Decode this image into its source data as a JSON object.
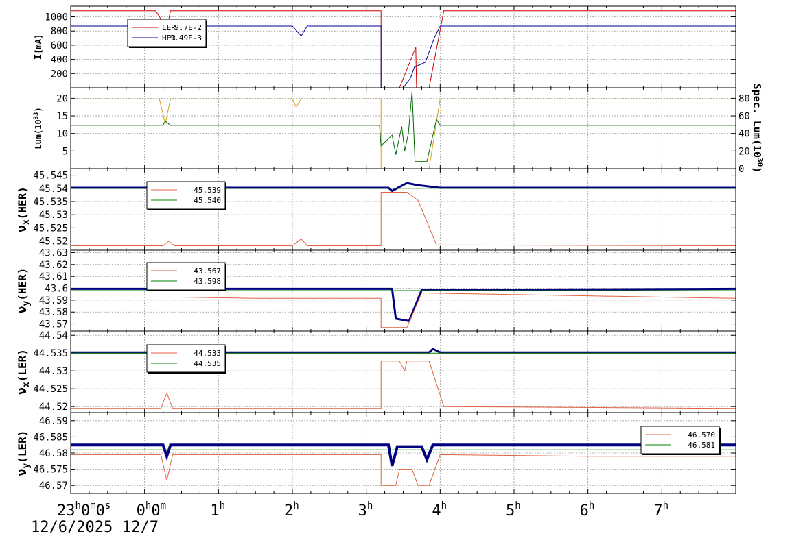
{
  "chart_data": {
    "type": "line",
    "x_axis": {
      "range_hours": [
        -1,
        8
      ],
      "ticks": [
        {
          "h": -1,
          "main": "23",
          "sup": "h",
          "rest": [
            [
              "0",
              "m"
            ],
            [
              "0",
              "s"
            ]
          ]
        },
        {
          "h": 0,
          "main": "0",
          "sup": "h",
          "rest": [
            [
              "0",
              "m"
            ]
          ]
        },
        {
          "h": 1,
          "main": "1",
          "sup": "h",
          "rest": []
        },
        {
          "h": 2,
          "main": "2",
          "sup": "h",
          "rest": []
        },
        {
          "h": 3,
          "main": "3",
          "sup": "h",
          "rest": []
        },
        {
          "h": 4,
          "main": "4",
          "sup": "h",
          "rest": []
        },
        {
          "h": 5,
          "main": "5",
          "sup": "h",
          "rest": []
        },
        {
          "h": 6,
          "main": "6",
          "sup": "h",
          "rest": []
        },
        {
          "h": 7,
          "main": "7",
          "sup": "h",
          "rest": []
        }
      ],
      "date_labels": [
        "12/6/2025",
        "12/7"
      ]
    },
    "panels": [
      {
        "id": "current",
        "ylabel_main": "I",
        "ylabel_unit": "[mA]",
        "ylabel_sub": "",
        "ylabel_super": "",
        "ylim": [
          0,
          1150
        ],
        "yticks": [
          200,
          400,
          600,
          800,
          1000
        ],
        "tick_labels": [
          "200",
          "400",
          "600",
          "800",
          "1000"
        ],
        "legend": [
          {
            "label": "LER",
            "value": "9.7E-2",
            "color": "#cc0000"
          },
          {
            "label": "HER",
            "value": "9.49E-3",
            "color": "#000099"
          }
        ],
        "series": [
          {
            "color": "#cc0000",
            "points": [
              [
                -1,
                1085
              ],
              [
                0.15,
                1085
              ],
              [
                0.25,
                920
              ],
              [
                0.3,
                820
              ],
              [
                0.35,
                1085
              ],
              [
                3.2,
                1085
              ],
              [
                3.2,
                0
              ],
              [
                3.45,
                0
              ],
              [
                3.67,
                570
              ],
              [
                3.68,
                0
              ],
              [
                3.85,
                0
              ],
              [
                4.05,
                1085
              ],
              [
                8,
                1085
              ],
              [
                8,
                0
              ]
            ]
          },
          {
            "color": "#000099",
            "points": [
              [
                -1,
                870
              ],
              [
                0.2,
                870
              ],
              [
                0.25,
                820
              ],
              [
                0.3,
                740
              ],
              [
                0.38,
                870
              ],
              [
                2.0,
                870
              ],
              [
                2.12,
                730
              ],
              [
                2.2,
                870
              ],
              [
                3.2,
                870
              ],
              [
                3.2,
                0
              ],
              [
                3.5,
                0
              ],
              [
                3.6,
                140
              ],
              [
                3.65,
                290
              ],
              [
                3.8,
                360
              ],
              [
                3.92,
                700
              ],
              [
                4.0,
                870
              ],
              [
                8,
                870
              ],
              [
                8,
                0
              ]
            ]
          }
        ]
      },
      {
        "id": "luminosity",
        "ylabel_main": "Lum",
        "ylabel_unit": "",
        "ylabel_sub": "",
        "ylabel_super": "33",
        "ylim": [
          0,
          23
        ],
        "yticks": [
          5,
          10,
          15,
          20
        ],
        "tick_labels": [
          "5",
          "10",
          "15",
          "20"
        ],
        "right_axis": {
          "label": "Spec. Lum(10",
          "super": "30",
          "close": ")",
          "ylim": [
            0,
            92
          ],
          "yticks": [
            0,
            20,
            40,
            60,
            80
          ],
          "tick_labels": [
            "0",
            "20",
            "40",
            "60",
            "80"
          ]
        },
        "legend": [],
        "series": [
          {
            "color": "#d4a017",
            "points": [
              [
                -1,
                19.8
              ],
              [
                0.2,
                19.8
              ],
              [
                0.28,
                12.8
              ],
              [
                0.35,
                19.8
              ],
              [
                2.0,
                19.8
              ],
              [
                2.05,
                17.5
              ],
              [
                2.12,
                19.8
              ],
              [
                3.2,
                19.8
              ],
              [
                3.2,
                0
              ],
              [
                3.85,
                0
              ],
              [
                4.0,
                19.8
              ],
              [
                8,
                19.8
              ]
            ]
          },
          {
            "color": "#006400",
            "points": [
              [
                -1,
                12.3
              ],
              [
                0.25,
                12.3
              ],
              [
                0.28,
                13.5
              ],
              [
                0.35,
                12.3
              ],
              [
                3.18,
                12.3
              ],
              [
                3.2,
                6.5
              ],
              [
                3.35,
                9.5
              ],
              [
                3.4,
                4
              ],
              [
                3.48,
                12
              ],
              [
                3.52,
                5
              ],
              [
                3.57,
                10
              ],
              [
                3.62,
                22
              ],
              [
                3.66,
                2
              ],
              [
                3.82,
                2
              ],
              [
                3.95,
                14
              ],
              [
                4.0,
                12.3
              ],
              [
                8,
                12.3
              ]
            ]
          }
        ]
      },
      {
        "id": "nux_her",
        "ylabel_main": "ν",
        "ylabel_unit": "(HER)",
        "ylabel_sub": "x",
        "ylabel_super": "",
        "ylim": [
          45.5165,
          45.5475
        ],
        "yticks": [
          45.52,
          45.525,
          45.53,
          45.535,
          45.54,
          45.545
        ],
        "tick_labels": [
          "45.52",
          "45.525",
          "45.53",
          "45.535",
          "45.54",
          "45.545"
        ],
        "legend": [
          {
            "label": "",
            "value": "45.539",
            "color": "#e06040"
          },
          {
            "label": "",
            "value": "45.540",
            "color": "#008000"
          }
        ],
        "series": [
          {
            "color": "#000080",
            "points": [
              [
                -1,
                45.5402
              ],
              [
                3.3,
                45.5402
              ],
              [
                3.35,
                45.539
              ],
              [
                3.55,
                45.542
              ],
              [
                3.7,
                45.5412
              ],
              [
                4.0,
                45.5402
              ],
              [
                8,
                45.5402
              ]
            ],
            "width": 3
          },
          {
            "color": "#008000",
            "points": [
              [
                -1,
                45.54
              ],
              [
                8,
                45.54
              ]
            ],
            "width": 1
          },
          {
            "color": "#e06040",
            "points": [
              [
                -1,
                45.5182
              ],
              [
                0.25,
                45.5182
              ],
              [
                0.33,
                45.52
              ],
              [
                0.4,
                45.5182
              ],
              [
                2.0,
                45.5182
              ],
              [
                2.12,
                45.5208
              ],
              [
                2.2,
                45.5182
              ],
              [
                3.2,
                45.5182
              ],
              [
                3.2,
                45.5385
              ],
              [
                3.55,
                45.5385
              ],
              [
                3.7,
                45.5355
              ],
              [
                3.95,
                45.5185
              ],
              [
                8,
                45.5182
              ],
              [
                8,
                45.54
              ]
            ],
            "width": 1
          }
        ]
      },
      {
        "id": "nuy_her",
        "ylabel_main": "ν",
        "ylabel_unit": "(HER)",
        "ylabel_sub": "y",
        "ylabel_super": "",
        "ylim": [
          43.564,
          43.632
        ],
        "yticks": [
          43.57,
          43.58,
          43.59,
          43.6,
          43.61,
          43.62,
          43.63
        ],
        "tick_labels": [
          "43.57",
          "43.58",
          "43.59",
          "43.6",
          "43.61",
          "43.62",
          "43.63"
        ],
        "legend": [
          {
            "label": "",
            "value": "43.567",
            "color": "#e06040"
          },
          {
            "label": "",
            "value": "43.598",
            "color": "#008000"
          }
        ],
        "series": [
          {
            "color": "#000080",
            "points": [
              [
                -1,
                43.5995
              ],
              [
                3.2,
                43.5995
              ],
              [
                3.35,
                43.5995
              ],
              [
                3.4,
                43.5745
              ],
              [
                3.58,
                43.5725
              ],
              [
                3.75,
                43.5985
              ],
              [
                8,
                43.5995
              ]
            ],
            "width": 3
          },
          {
            "color": "#008000",
            "points": [
              [
                -1,
                43.598
              ],
              [
                8,
                43.598
              ]
            ],
            "width": 1
          },
          {
            "color": "#e06040",
            "points": [
              [
                -1,
                43.5925
              ],
              [
                0.5,
                43.5925
              ],
              [
                1.5,
                43.5915
              ],
              [
                3.2,
                43.5915
              ],
              [
                3.2,
                43.567
              ],
              [
                3.55,
                43.567
              ],
              [
                3.75,
                43.596
              ],
              [
                8,
                43.5915
              ]
            ],
            "width": 1
          }
        ]
      },
      {
        "id": "nux_ler",
        "ylabel_main": "ν",
        "ylabel_unit": "(LER)",
        "ylabel_sub": "x",
        "ylabel_super": "",
        "ylim": [
          44.5183,
          44.5412
        ],
        "yticks": [
          44.52,
          44.525,
          44.53,
          44.535,
          44.54
        ],
        "tick_labels": [
          "44.52",
          "44.525",
          "44.53",
          "44.535",
          "44.54"
        ],
        "legend": [
          {
            "label": "",
            "value": "44.533",
            "color": "#e06040"
          },
          {
            "label": "",
            "value": "44.535",
            "color": "#008000"
          }
        ],
        "series": [
          {
            "color": "#000080",
            "points": [
              [
                -1,
                44.5352
              ],
              [
                3.85,
                44.5352
              ],
              [
                3.9,
                44.5362
              ],
              [
                4.0,
                44.5352
              ],
              [
                8,
                44.5352
              ]
            ],
            "width": 3
          },
          {
            "color": "#008000",
            "points": [
              [
                -1,
                44.535
              ],
              [
                8,
                44.535
              ]
            ],
            "width": 1
          },
          {
            "color": "#e06040",
            "points": [
              [
                -1,
                44.5195
              ],
              [
                0.22,
                44.5195
              ],
              [
                0.3,
                44.5238
              ],
              [
                0.38,
                44.5195
              ],
              [
                3.2,
                44.5195
              ],
              [
                3.2,
                44.5328
              ],
              [
                3.45,
                44.5328
              ],
              [
                3.52,
                44.53
              ],
              [
                3.55,
                44.5328
              ],
              [
                3.85,
                44.5328
              ],
              [
                4.05,
                44.52
              ],
              [
                8,
                44.5195
              ],
              [
                8,
                44.533
              ]
            ],
            "width": 1
          }
        ]
      },
      {
        "id": "nuy_ler",
        "ylabel_main": "ν",
        "ylabel_unit": "(LER)",
        "ylabel_sub": "y",
        "ylabel_super": "",
        "ylim": [
          46.5675,
          46.5925
        ],
        "yticks": [
          46.57,
          46.575,
          46.58,
          46.585,
          46.59
        ],
        "tick_labels": [
          "46.57",
          "46.575",
          "46.58",
          "46.585",
          "46.59"
        ],
        "legend": [
          {
            "label": "",
            "value": "46.570",
            "color": "#e06040"
          },
          {
            "label": "",
            "value": "46.581",
            "color": "#008000"
          }
        ],
        "series": [
          {
            "color": "#000080",
            "points": [
              [
                -1,
                46.5825
              ],
              [
                0.25,
                46.5825
              ],
              [
                0.3,
                46.579
              ],
              [
                0.35,
                46.5825
              ],
              [
                3.3,
                46.5825
              ],
              [
                3.35,
                46.576
              ],
              [
                3.42,
                46.582
              ],
              [
                3.75,
                46.582
              ],
              [
                3.82,
                46.578
              ],
              [
                3.9,
                46.5825
              ],
              [
                8,
                46.5825
              ]
            ],
            "width": 4
          },
          {
            "color": "#008000",
            "points": [
              [
                -1,
                46.581
              ],
              [
                8,
                46.581
              ]
            ],
            "width": 1
          },
          {
            "color": "#e06040",
            "points": [
              [
                -1,
                46.5795
              ],
              [
                0.22,
                46.5795
              ],
              [
                0.3,
                46.5715
              ],
              [
                0.38,
                46.5795
              ],
              [
                3.2,
                46.5795
              ],
              [
                3.2,
                46.57
              ],
              [
                3.4,
                46.57
              ],
              [
                3.45,
                46.575
              ],
              [
                3.62,
                46.575
              ],
              [
                3.7,
                46.57
              ],
              [
                3.85,
                46.57
              ],
              [
                4.0,
                46.5795
              ],
              [
                6.0,
                46.579
              ],
              [
                8,
                46.579
              ],
              [
                8,
                46.57
              ]
            ],
            "width": 1
          }
        ]
      }
    ]
  }
}
